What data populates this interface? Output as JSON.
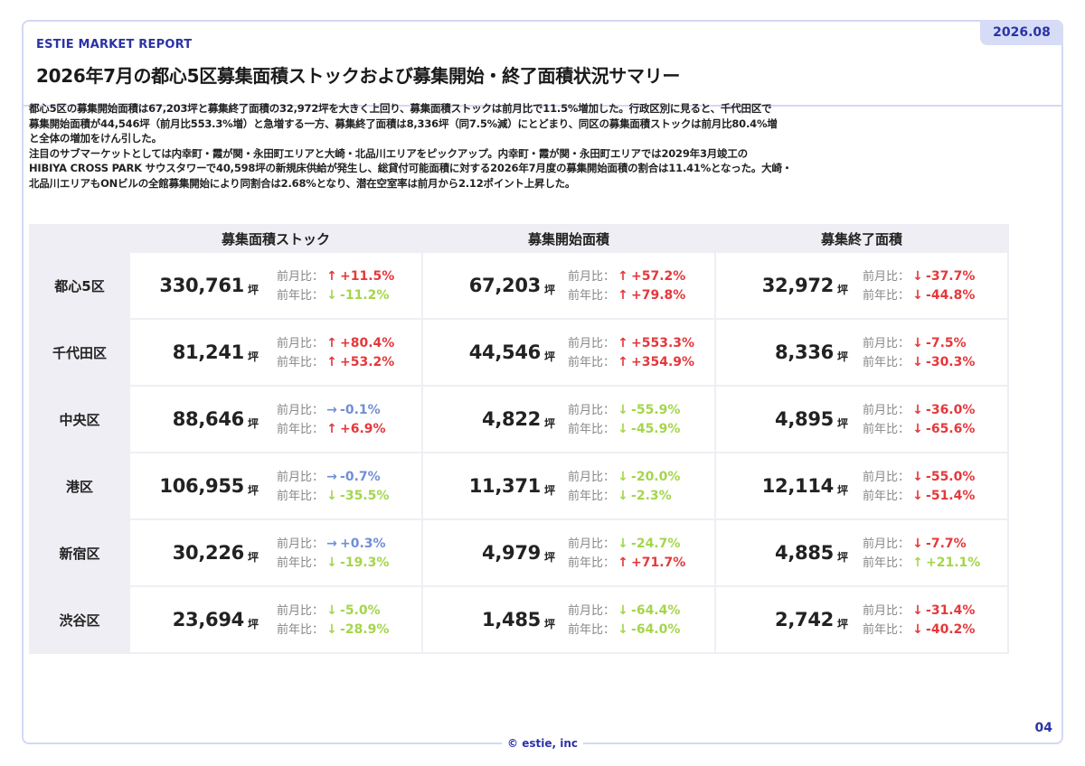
{
  "header": {
    "brand": "ESTIE MARKET REPORT",
    "title": "2026年7月の都心5区募集面積ストックおよび募集開始・終了面積状況サマリー",
    "date": "2026.08"
  },
  "summary": {
    "lines": [
      "都心5区の募集開始面積は67,203坪と募集終了面積の32,972坪を大きく上回り、募集面積ストックは前月比で11.5%増加した。行政区別に見ると、千代田区で",
      "募集開始面積が44,546坪（前月比553.3%増）と急増する一方、募集終了面積は8,336坪（同7.5%減）にとどまり、同区の募集面積ストックは前月比80.4%増",
      "と全体の増加をけん引した。",
      "注目のサブマーケットとしては内幸町・霞が関・永田町エリアと大崎・北品川エリアをピックアップ。内幸町・霞が関・永田町エリアでは2029年3月竣工の",
      "HIBIYA CROSS PARK サウスタワーで40,598坪の新規床供給が発生し、総貸付可能面積に対する2026年7月度の募集開始面積の割合は11.41%となった。大崎・",
      "北品川エリアもONビルの全館募集開始により同割合は2.68%となり、潜在空室率は前月から2.12ポイント上昇した。"
    ]
  },
  "table": {
    "columns": [
      "募集面積ストック",
      "募集開始面積",
      "募集終了面積"
    ],
    "unit": "坪",
    "mom_label": "前月比：",
    "yoy_label": "前年比：",
    "colors": {
      "up": "#e5383b",
      "down": "#a4d64b",
      "flat": "#6f8fd6"
    },
    "rows": [
      {
        "name": "都心5区",
        "cells": [
          {
            "value": "330,761",
            "mom": {
              "dir": "up",
              "text": "+11.5%",
              "color": "up"
            },
            "yoy": {
              "dir": "down",
              "text": "-11.2%",
              "color": "down"
            }
          },
          {
            "value": "67,203",
            "mom": {
              "dir": "up",
              "text": "+57.2%",
              "color": "up"
            },
            "yoy": {
              "dir": "up",
              "text": "+79.8%",
              "color": "up"
            }
          },
          {
            "value": "32,972",
            "mom": {
              "dir": "down",
              "text": "-37.7%",
              "color": "up"
            },
            "yoy": {
              "dir": "down",
              "text": "-44.8%",
              "color": "up"
            }
          }
        ]
      },
      {
        "name": "千代田区",
        "cells": [
          {
            "value": "81,241",
            "mom": {
              "dir": "up",
              "text": "+80.4%",
              "color": "up"
            },
            "yoy": {
              "dir": "up",
              "text": "+53.2%",
              "color": "up"
            }
          },
          {
            "value": "44,546",
            "mom": {
              "dir": "up",
              "text": "+553.3%",
              "color": "up"
            },
            "yoy": {
              "dir": "up",
              "text": "+354.9%",
              "color": "up"
            }
          },
          {
            "value": "8,336",
            "mom": {
              "dir": "down",
              "text": "-7.5%",
              "color": "up"
            },
            "yoy": {
              "dir": "down",
              "text": "-30.3%",
              "color": "up"
            }
          }
        ]
      },
      {
        "name": "中央区",
        "cells": [
          {
            "value": "88,646",
            "mom": {
              "dir": "flat",
              "text": "-0.1%",
              "color": "flat"
            },
            "yoy": {
              "dir": "up",
              "text": "+6.9%",
              "color": "up"
            }
          },
          {
            "value": "4,822",
            "mom": {
              "dir": "down",
              "text": "-55.9%",
              "color": "down"
            },
            "yoy": {
              "dir": "down",
              "text": "-45.9%",
              "color": "down"
            }
          },
          {
            "value": "4,895",
            "mom": {
              "dir": "down",
              "text": "-36.0%",
              "color": "up"
            },
            "yoy": {
              "dir": "down",
              "text": "-65.6%",
              "color": "up"
            }
          }
        ]
      },
      {
        "name": "港区",
        "cells": [
          {
            "value": "106,955",
            "mom": {
              "dir": "flat",
              "text": "-0.7%",
              "color": "flat"
            },
            "yoy": {
              "dir": "down",
              "text": "-35.5%",
              "color": "down"
            }
          },
          {
            "value": "11,371",
            "mom": {
              "dir": "down",
              "text": "-20.0%",
              "color": "down"
            },
            "yoy": {
              "dir": "down",
              "text": "-2.3%",
              "color": "down"
            }
          },
          {
            "value": "12,114",
            "mom": {
              "dir": "down",
              "text": "-55.0%",
              "color": "up"
            },
            "yoy": {
              "dir": "down",
              "text": "-51.4%",
              "color": "up"
            }
          }
        ]
      },
      {
        "name": "新宿区",
        "cells": [
          {
            "value": "30,226",
            "mom": {
              "dir": "flat",
              "text": "+0.3%",
              "color": "flat"
            },
            "yoy": {
              "dir": "down",
              "text": "-19.3%",
              "color": "down"
            }
          },
          {
            "value": "4,979",
            "mom": {
              "dir": "down",
              "text": "-24.7%",
              "color": "down"
            },
            "yoy": {
              "dir": "up",
              "text": "+71.7%",
              "color": "up"
            }
          },
          {
            "value": "4,885",
            "mom": {
              "dir": "down",
              "text": "-7.7%",
              "color": "up"
            },
            "yoy": {
              "dir": "up",
              "text": "+21.1%",
              "color": "down"
            }
          }
        ]
      },
      {
        "name": "渋谷区",
        "cells": [
          {
            "value": "23,694",
            "mom": {
              "dir": "down",
              "text": "-5.0%",
              "color": "down"
            },
            "yoy": {
              "dir": "down",
              "text": "-28.9%",
              "color": "down"
            }
          },
          {
            "value": "1,485",
            "mom": {
              "dir": "down",
              "text": "-64.4%",
              "color": "down"
            },
            "yoy": {
              "dir": "down",
              "text": "-64.0%",
              "color": "down"
            }
          },
          {
            "value": "2,742",
            "mom": {
              "dir": "down",
              "text": "-31.4%",
              "color": "up"
            },
            "yoy": {
              "dir": "down",
              "text": "-40.2%",
              "color": "up"
            }
          }
        ]
      }
    ]
  },
  "footer": {
    "copyright": "© estie, inc",
    "page": "04"
  }
}
